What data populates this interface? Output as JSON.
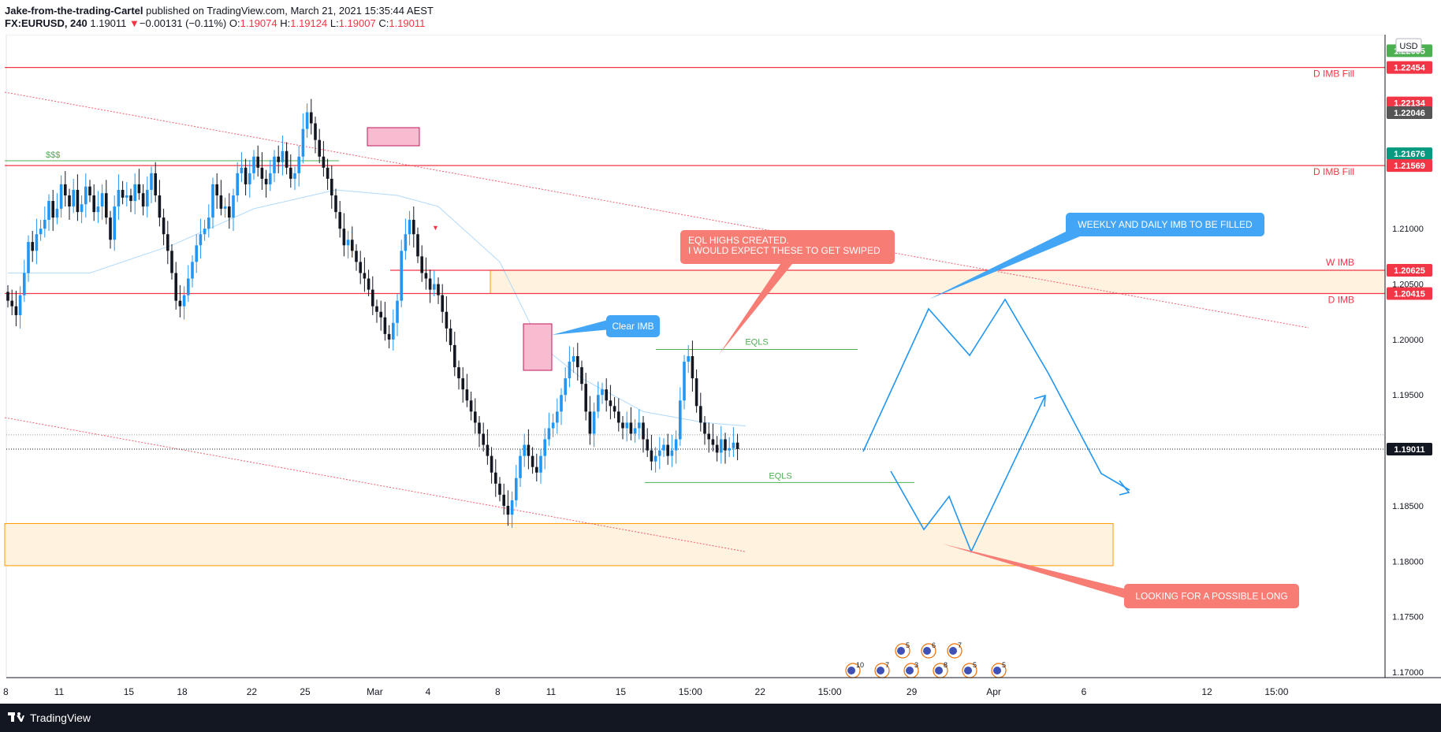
{
  "header": {
    "author": "Jake-from-the-trading-Cartel",
    "published": " published on TradingView.com, March 21, 2021 15:35:44 AEST",
    "symbol": "FX:EURUSD, 240",
    "last": "1.19011",
    "change": "−0.00131 (−0.11%)",
    "o_label": "O:",
    "o": "1.19074",
    "h_label": "H:",
    "h": "1.19124",
    "l_label": "L:",
    "l": "1.19007",
    "c_label": "C:",
    "c": "1.19011"
  },
  "footer": {
    "brand": "TradingView"
  },
  "currency_label": "USD",
  "colors": {
    "up": "#2196f3",
    "down": "#131722",
    "red": "#f23645",
    "green": "#4caf50",
    "orange_zone": "#ff9800",
    "zone_fill": "#fff3e0",
    "pink": "#f8bbd0",
    "note_blue": "#42a5f5",
    "note_red": "#f77c74"
  },
  "chart_data": {
    "type": "candlestick",
    "instrument": "EURUSD",
    "timeframe": "240",
    "ylim": [
      1.1695,
      1.2275
    ],
    "y_ticks": [
      1.17,
      1.175,
      1.18,
      1.185,
      1.19,
      1.195,
      1.2,
      1.205,
      1.21
    ],
    "x_ticks": [
      {
        "label": "8",
        "i": -0.5
      },
      {
        "label": "11",
        "i": 12.5
      },
      {
        "label": "15",
        "i": 29.5
      },
      {
        "label": "18",
        "i": 42.5
      },
      {
        "label": "22",
        "i": 59.5
      },
      {
        "label": "25",
        "i": 72.5
      },
      {
        "label": "Mar",
        "i": 89.5
      },
      {
        "label": "4",
        "i": 102.5
      },
      {
        "label": "8",
        "i": 119.5
      },
      {
        "label": "11",
        "i": 132.5
      },
      {
        "label": "15",
        "i": 149.5
      },
      {
        "label": "15:00",
        "i": 166.5
      },
      {
        "label": "22",
        "i": 183.5
      },
      {
        "label": "15:00",
        "i": 200.5
      },
      {
        "label": "29",
        "i": 220.5
      },
      {
        "label": "Apr",
        "i": 240.5
      },
      {
        "label": "6",
        "i": 262.5
      },
      {
        "label": "12",
        "i": 292.5
      },
      {
        "label": "15:00",
        "i": 309.5
      }
    ],
    "candles": [
      1.2035,
      1.203,
      1.2022,
      1.204,
      1.206,
      1.2088,
      1.208,
      1.2095,
      1.21,
      1.2108,
      1.2125,
      1.211,
      1.2118,
      1.214,
      1.213,
      1.212,
      1.2135,
      1.2115,
      1.2122,
      1.2138,
      1.213,
      1.2115,
      1.212,
      1.2132,
      1.211,
      1.209,
      1.212,
      1.2135,
      1.2128,
      1.213,
      1.2125,
      1.214,
      1.2132,
      1.212,
      1.2135,
      1.215,
      1.213,
      1.211,
      1.2095,
      1.208,
      1.206,
      1.2035,
      1.203,
      1.204,
      1.2055,
      1.207,
      1.2085,
      1.2095,
      1.21,
      1.211,
      1.214,
      1.213,
      1.2118,
      1.212,
      1.211,
      1.213,
      1.215,
      1.2155,
      1.214,
      1.215,
      1.2165,
      1.2155,
      1.2145,
      1.214,
      1.215,
      1.2165,
      1.216,
      1.217,
      1.2155,
      1.2145,
      1.215,
      1.2165,
      1.219,
      1.2205,
      1.2195,
      1.218,
      1.2165,
      1.2155,
      1.2145,
      1.213,
      1.2115,
      1.21,
      1.2085,
      1.209,
      1.208,
      1.207,
      1.206,
      1.2055,
      1.2045,
      1.203,
      1.2025,
      1.202,
      1.2005,
      1.2,
      1.2015,
      1.2035,
      1.208,
      1.2095,
      1.2108,
      1.2095,
      1.2075,
      1.206,
      1.2055,
      1.2045,
      1.205,
      1.204,
      1.2025,
      1.201,
      1.1995,
      1.1975,
      1.1965,
      1.1955,
      1.1945,
      1.1935,
      1.1925,
      1.1915,
      1.1905,
      1.1895,
      1.188,
      1.187,
      1.186,
      1.185,
      1.1842,
      1.1855,
      1.1875,
      1.1895,
      1.1905,
      1.1895,
      1.1885,
      1.188,
      1.1895,
      1.191,
      1.192,
      1.1925,
      1.1935,
      1.195,
      1.1965,
      1.198,
      1.1985,
      1.1975,
      1.196,
      1.1935,
      1.1915,
      1.1935,
      1.195,
      1.1955,
      1.1945,
      1.194,
      1.1935,
      1.1925,
      1.192,
      1.1925,
      1.1915,
      1.192,
      1.1925,
      1.191,
      1.19,
      1.189,
      1.1895,
      1.19,
      1.1905,
      1.1895,
      1.19,
      1.191,
      1.1945,
      1.198,
      1.1985,
      1.1965,
      1.194,
      1.1925,
      1.1915,
      1.191,
      1.1905,
      1.1898,
      1.191,
      1.19,
      1.1902,
      1.1907,
      1.19011
    ],
    "ma_line": [
      [
        0,
        1.206
      ],
      [
        20,
        1.206
      ],
      [
        40,
        1.2085
      ],
      [
        60,
        1.2118
      ],
      [
        80,
        1.2135
      ],
      [
        95,
        1.213
      ],
      [
        105,
        1.212
      ],
      [
        120,
        1.207
      ],
      [
        130,
        1.1995
      ],
      [
        140,
        1.1965
      ],
      [
        155,
        1.1935
      ],
      [
        170,
        1.1925
      ],
      [
        180,
        1.1922
      ]
    ],
    "horizontal_levels": [
      {
        "y": 1.22454,
        "label": "D IMB Fill",
        "color": "red"
      },
      {
        "y": 1.21569,
        "label": "D IMB Fill",
        "color": "red"
      },
      {
        "y": 1.20415,
        "label": "D IMB",
        "color": "red"
      },
      {
        "y": 1.20625,
        "label": "W IMB",
        "color": "red"
      }
    ],
    "price_tags": [
      {
        "y": 1.22605,
        "text": "1.22605",
        "color": "#4caf50"
      },
      {
        "y": 1.22454,
        "text": "1.22454",
        "color": "#f23645"
      },
      {
        "y": 1.22134,
        "text": "1.22134",
        "color": "#f23645"
      },
      {
        "y": 1.22046,
        "text": "1.22046",
        "color": "#555555"
      },
      {
        "y": 1.21676,
        "text": "1.21676",
        "color": "#089981"
      },
      {
        "y": 1.21569,
        "text": "1.21569",
        "color": "#f23645"
      },
      {
        "y": 1.20625,
        "text": "1.20625",
        "color": "#f23645"
      },
      {
        "y": 1.20415,
        "text": "1.20415",
        "color": "#f23645"
      },
      {
        "y": 1.19011,
        "text": "1.19011",
        "color": "#131722"
      }
    ],
    "annotations": {
      "dollars": "$$$",
      "eqls_top": "EQLS",
      "eqls_bottom": "EQLS",
      "clear_imb": "Clear IMB",
      "eql_highs_line1": "EQL HIGHS CREATED.",
      "eql_highs_line2": "I WOULD EXPECT THESE TO GET SWIPED",
      "weekly_daily": "WEEKLY AND DAILY IMB TO BE FILLED",
      "long": "LOOKING FOR A POSSIBLE LONG"
    },
    "event_rows": {
      "top": [
        "5",
        "6",
        "7"
      ],
      "bottom": [
        "10",
        "7",
        "3",
        "8",
        "5",
        "5"
      ]
    }
  }
}
